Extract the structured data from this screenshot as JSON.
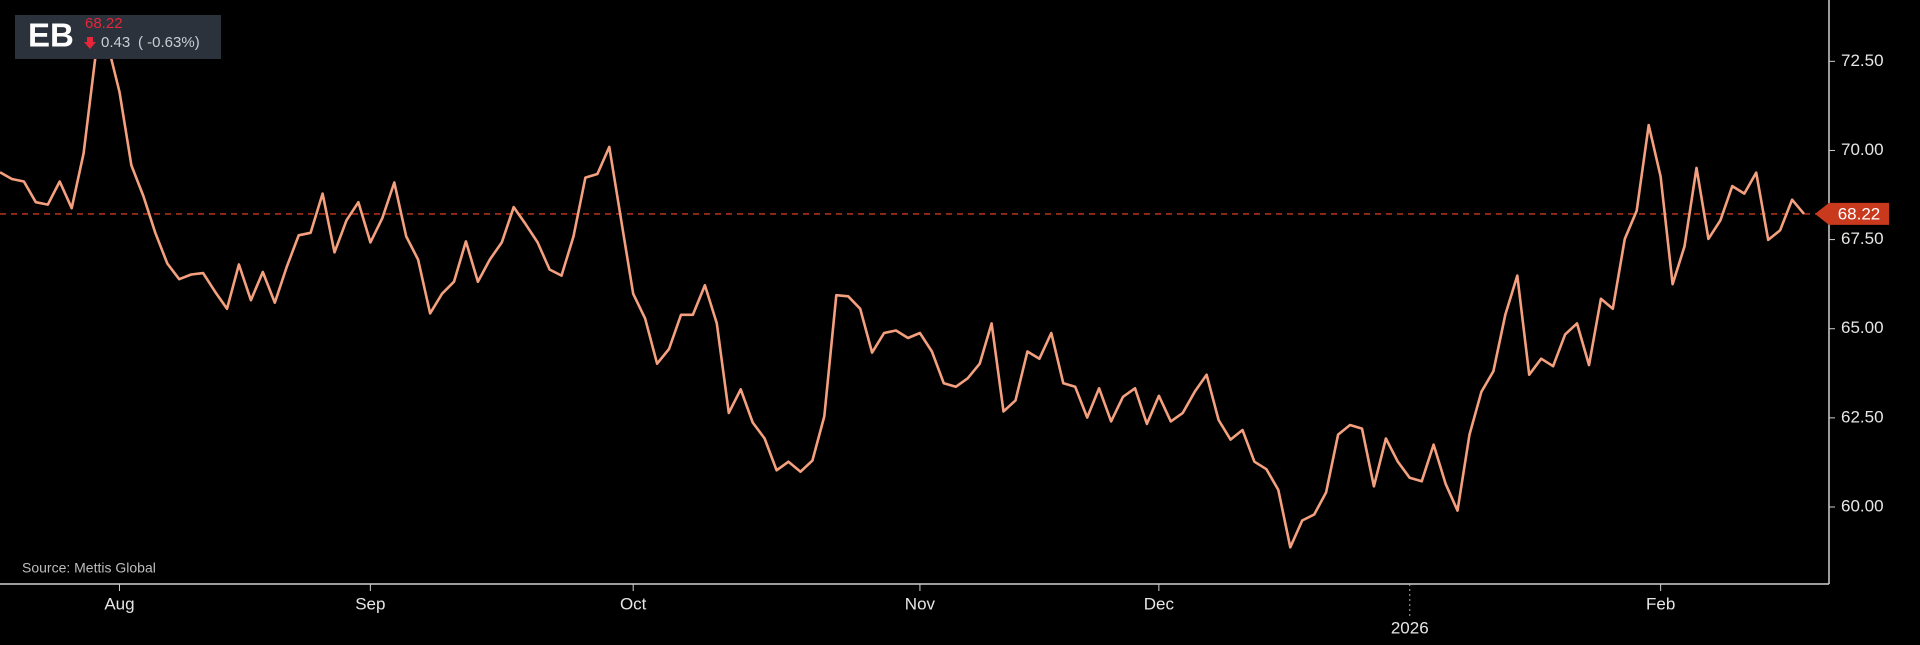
{
  "chart_data": {
    "type": "line",
    "title": "EB",
    "change": "0.43",
    "change_percent": "( -0.63%)",
    "source": "Source: Mettis Global",
    "last_value": 68.22,
    "ylim": [
      57.84,
      74.22
    ],
    "yticks": [
      {
        "value": 60,
        "label": "60.00"
      },
      {
        "value": 62.5,
        "label": "62.50"
      },
      {
        "value": 65,
        "label": "65.00"
      },
      {
        "value": 67.5,
        "label": "67.50"
      },
      {
        "value": 70,
        "label": "70.00"
      },
      {
        "value": 72.5,
        "label": "72.50"
      }
    ],
    "categories": [
      null,
      null,
      null,
      null,
      null,
      null,
      null,
      null,
      null,
      null,
      "Aug",
      null,
      null,
      null,
      null,
      null,
      null,
      null,
      null,
      null,
      null,
      null,
      null,
      null,
      null,
      null,
      null,
      null,
      null,
      null,
      null,
      "Sep",
      null,
      null,
      null,
      null,
      null,
      null,
      null,
      null,
      null,
      null,
      null,
      null,
      null,
      null,
      null,
      null,
      null,
      null,
      null,
      null,
      null,
      "Oct",
      null,
      null,
      null,
      null,
      null,
      null,
      null,
      null,
      null,
      null,
      null,
      null,
      null,
      null,
      null,
      null,
      null,
      null,
      null,
      null,
      null,
      null,
      null,
      "Nov",
      null,
      null,
      null,
      null,
      null,
      null,
      null,
      null,
      null,
      null,
      null,
      null,
      null,
      null,
      null,
      null,
      null,
      null,
      null,
      "Dec",
      null,
      null,
      null,
      null,
      null,
      null,
      null,
      null,
      null,
      null,
      null,
      null,
      null,
      null,
      null,
      null,
      null,
      null,
      null,
      null,
      "2026",
      null,
      null,
      null,
      null,
      null,
      null,
      null,
      null,
      null,
      null,
      null,
      null,
      null,
      null,
      null,
      null,
      null,
      null,
      null,
      null,
      "Feb",
      null,
      null,
      null,
      null,
      null,
      null,
      null,
      null,
      null,
      null,
      null,
      null
    ],
    "series": [
      {
        "name": "EB",
        "color": "#f4a07e",
        "values": [
          69.39,
          69.2,
          69.13,
          68.55,
          68.48,
          69.13,
          68.38,
          69.92,
          72.67,
          73.0,
          71.64,
          69.58,
          68.72,
          67.69,
          66.83,
          66.39,
          66.52,
          66.56,
          66.04,
          65.56,
          66.8,
          65.8,
          66.59,
          65.73,
          66.73,
          67.62,
          67.69,
          68.79,
          67.14,
          68.04,
          68.55,
          67.42,
          68.1,
          69.1,
          67.59,
          66.94,
          65.43,
          65.98,
          66.32,
          67.45,
          66.32,
          66.94,
          67.42,
          68.41,
          67.93,
          67.42,
          66.66,
          66.49,
          67.59,
          69.24,
          69.34,
          70.1,
          68.04,
          65.98,
          65.29,
          64.02,
          64.43,
          65.39,
          65.39,
          66.22,
          65.15,
          62.64,
          63.3,
          62.37,
          61.92,
          61.03,
          61.27,
          60.99,
          61.3,
          62.54,
          65.94,
          65.91,
          65.56,
          64.33,
          64.88,
          64.95,
          64.74,
          64.88,
          64.36,
          63.47,
          63.37,
          63.61,
          64.02,
          65.15,
          62.68,
          62.99,
          64.36,
          64.16,
          64.88,
          63.47,
          63.37,
          62.51,
          63.33,
          62.4,
          63.09,
          63.33,
          62.33,
          63.12,
          62.4,
          62.64,
          63.23,
          63.71,
          62.44,
          61.89,
          62.16,
          61.27,
          61.06,
          60.48,
          58.87,
          59.62,
          59.79,
          60.41,
          62.03,
          62.3,
          62.2,
          60.58,
          61.92,
          61.27,
          60.82,
          60.72,
          61.75,
          60.65,
          59.9,
          62.03,
          63.23,
          63.81,
          65.39,
          66.49,
          63.71,
          64.16,
          63.95,
          64.84,
          65.15,
          63.98,
          65.84,
          65.56,
          67.52,
          68.31,
          70.71,
          69.27,
          66.25,
          67.31,
          69.51,
          67.52,
          68.04,
          69.0,
          68.79,
          69.38,
          67.49,
          67.76,
          68.62,
          68.22
        ]
      }
    ],
    "reference_color": "#c8391e",
    "grid": false
  }
}
